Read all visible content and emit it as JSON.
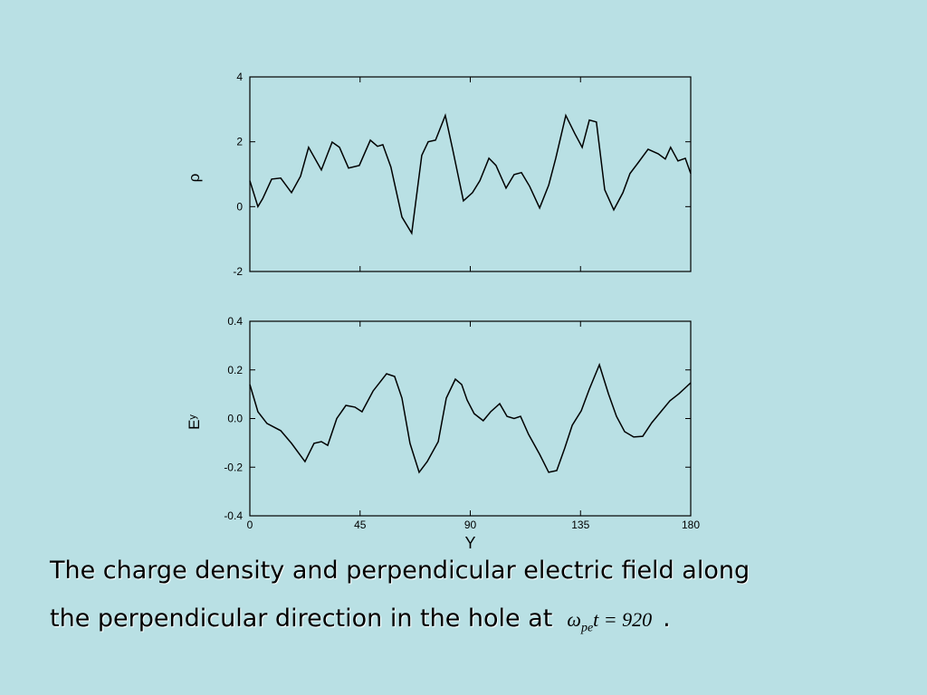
{
  "chart_data": [
    {
      "type": "line",
      "ylabel": "ρ",
      "x": [
        0,
        3.3,
        5.2,
        8.9,
        12.6,
        17.0,
        20.7,
        24.0,
        29.2,
        33.6,
        36.6,
        40.3,
        44.7,
        49.2,
        52.1,
        54.3,
        57.6,
        62.1,
        66.1,
        70.2,
        72.8,
        75.8,
        79.8,
        82.8,
        87.2,
        90.9,
        93.9,
        97.6,
        100.5,
        104.6,
        107.9,
        110.9,
        114.2,
        118.3,
        122.0,
        124.9,
        129.0,
        132.7,
        135.7,
        138.6,
        141.5,
        144.9,
        148.6,
        152.3,
        155.2,
        158.5,
        162.6,
        166.7,
        169.6,
        171.8,
        174.8,
        177.8,
        180
      ],
      "values": [
        0.8,
        0.0,
        0.24,
        0.85,
        0.88,
        0.43,
        0.94,
        1.83,
        1.13,
        1.99,
        1.83,
        1.19,
        1.27,
        2.05,
        1.86,
        1.91,
        1.22,
        -0.32,
        -0.82,
        1.58,
        2.0,
        2.05,
        2.81,
        1.77,
        0.18,
        0.43,
        0.8,
        1.49,
        1.27,
        0.57,
        0.99,
        1.05,
        0.63,
        -0.04,
        0.66,
        1.49,
        2.81,
        2.25,
        1.83,
        2.67,
        2.61,
        0.52,
        -0.1,
        0.43,
        1.02,
        1.35,
        1.77,
        1.63,
        1.47,
        1.83,
        1.41,
        1.49,
        1.02
      ],
      "color": "#000000",
      "xlim": [
        0,
        180
      ],
      "xticks": [
        0,
        45,
        90,
        135,
        180
      ],
      "ylim": [
        -2,
        4
      ],
      "yticks": [
        -2,
        0,
        2,
        4
      ]
    },
    {
      "type": "line",
      "ylabel": "E",
      "ylabel_subscript": "y",
      "xlabel": "Y",
      "x": [
        0,
        3.3,
        7.0,
        12.6,
        17.0,
        22.5,
        26.2,
        29.2,
        31.8,
        35.5,
        39.2,
        42.9,
        45.8,
        50.3,
        55.8,
        59.1,
        62.1,
        65.4,
        69.1,
        72.4,
        76.9,
        80.2,
        83.9,
        86.5,
        88.7,
        91.6,
        95.3,
        98.3,
        102.0,
        105.0,
        107.9,
        110.5,
        113.8,
        118.3,
        122.0,
        125.3,
        128.6,
        131.6,
        135.3,
        138.6,
        142.7,
        146.4,
        149.7,
        153.0,
        156.7,
        160.4,
        164.1,
        167.8,
        171.5,
        175.2,
        180
      ],
      "values": [
        0.14,
        0.028,
        -0.02,
        -0.05,
        -0.102,
        -0.177,
        -0.102,
        -0.095,
        -0.11,
        0.0,
        0.054,
        0.047,
        0.028,
        0.113,
        0.184,
        0.173,
        0.084,
        -0.102,
        -0.221,
        -0.177,
        -0.095,
        0.084,
        0.162,
        0.14,
        0.076,
        0.02,
        -0.009,
        0.028,
        0.061,
        0.009,
        0.0,
        0.009,
        -0.065,
        -0.147,
        -0.221,
        -0.214,
        -0.121,
        -0.028,
        0.032,
        0.121,
        0.221,
        0.102,
        0.009,
        -0.054,
        -0.076,
        -0.073,
        -0.017,
        0.028,
        0.073,
        0.102,
        0.147
      ],
      "color": "#000000",
      "xlim": [
        0,
        180
      ],
      "xticks": [
        0,
        45,
        90,
        135,
        180
      ],
      "ylim": [
        -0.4,
        0.4
      ],
      "yticks": [
        -0.4,
        -0.2,
        {
          "value": 0,
          "label": "0.0"
        },
        0.2,
        0.4
      ]
    }
  ],
  "caption": {
    "lines": [
      "The charge density and perpendicular electric field along",
      "the perpendicular direction in the hole at"
    ],
    "formula": {
      "base": "ω",
      "subscript": "pe",
      "rest": "t = 920"
    },
    "end": "."
  }
}
